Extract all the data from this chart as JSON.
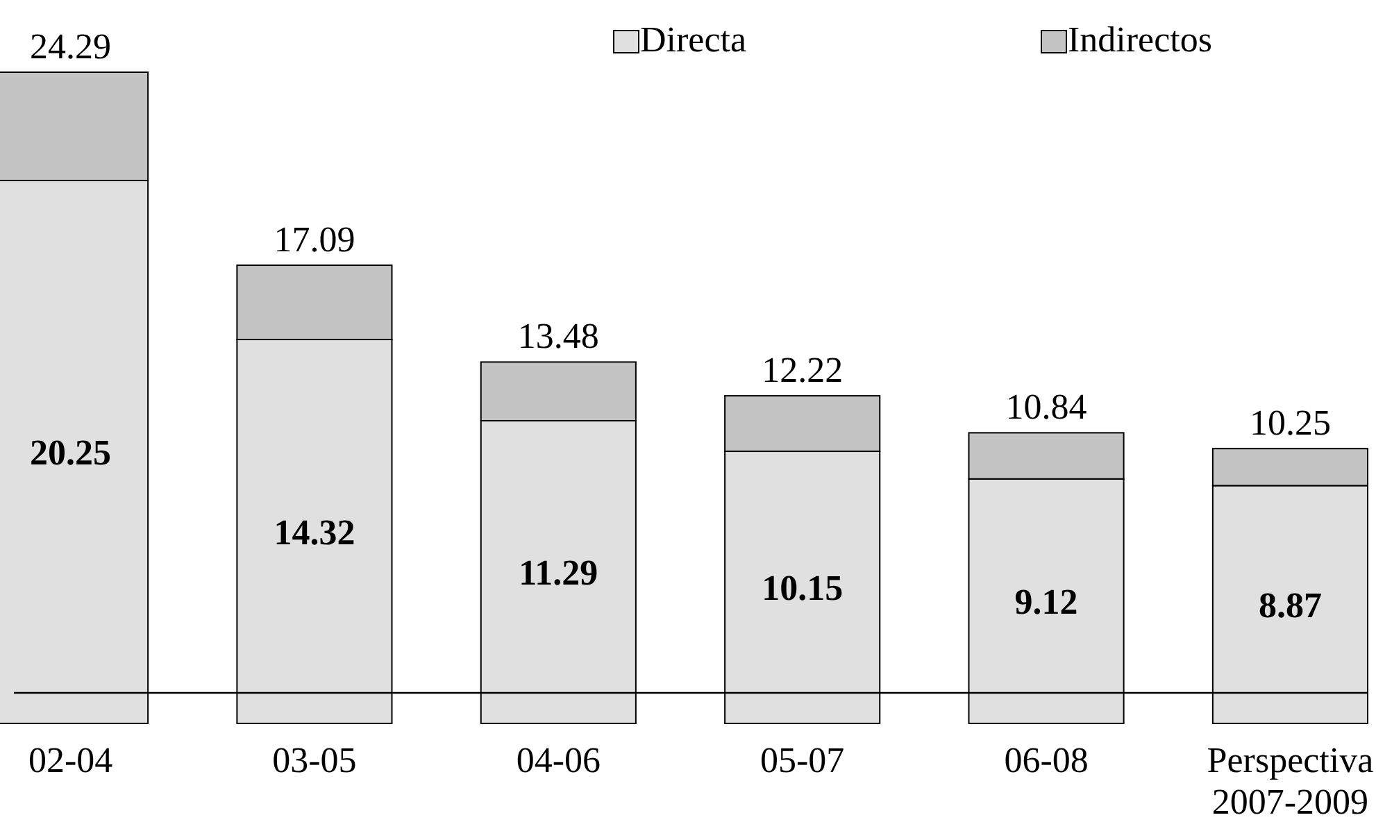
{
  "chart_data": {
    "type": "bar",
    "stacked": true,
    "categories": [
      "02-04",
      "03-05",
      "04-06",
      "05-07",
      "06-08",
      "Perspectiva 2007-2009"
    ],
    "series": [
      {
        "name": "Directa",
        "color": "#e0e0e0",
        "values": [
          20.25,
          14.32,
          11.29,
          10.15,
          9.12,
          8.87
        ],
        "value_labels": [
          "20.25",
          "14.32",
          "11.29",
          "10.15",
          "9.12",
          "8.87"
        ]
      },
      {
        "name": "Indirectos",
        "color": "#c4c4c4",
        "values": [
          4.04,
          2.77,
          2.19,
          2.07,
          1.72,
          1.38
        ]
      }
    ],
    "totals": [
      "24.29",
      "17.09",
      "13.48",
      "12.22",
      "10.84",
      "10.25"
    ],
    "tick_labels": "x",
    "legend": "top right"
  }
}
